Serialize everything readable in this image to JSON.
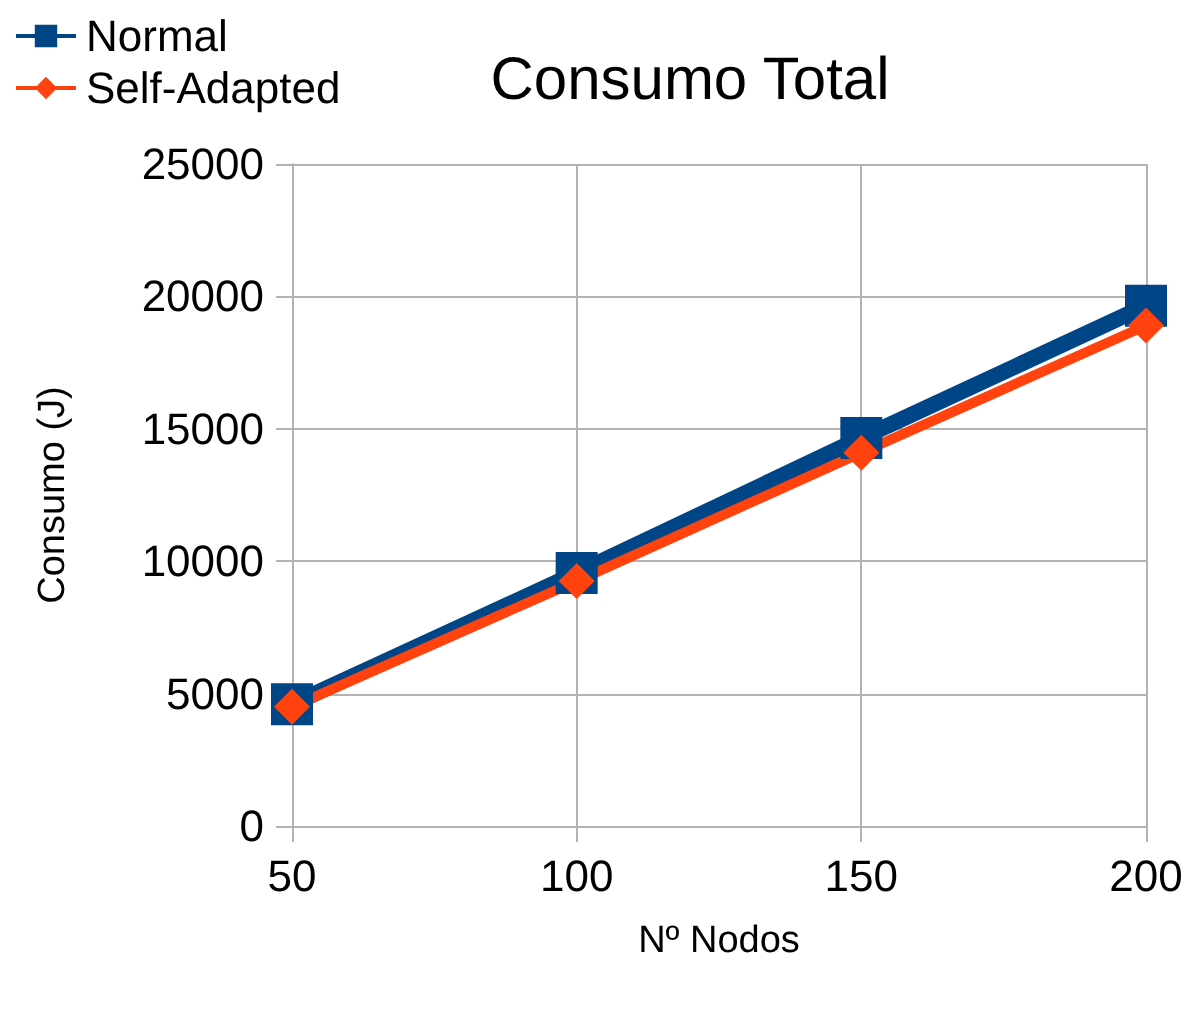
{
  "chart_data": {
    "type": "line",
    "title": "Consumo Total",
    "xlabel": "Nº Nodos",
    "ylabel": "Consumo (J)",
    "categories": [
      "50",
      "100",
      "150",
      "200"
    ],
    "series": [
      {
        "name": "Normal",
        "color": "#004586",
        "marker": "square",
        "values": [
          4600,
          9550,
          14650,
          19650
        ]
      },
      {
        "name": "Self-Adapted",
        "color": "#ff420e",
        "marker": "diamond",
        "values": [
          4500,
          9250,
          14100,
          18900
        ]
      }
    ],
    "ylim": [
      0,
      25000
    ],
    "yticks": [
      0,
      5000,
      10000,
      15000,
      20000,
      25000
    ],
    "grid": true,
    "legend": "top left"
  }
}
